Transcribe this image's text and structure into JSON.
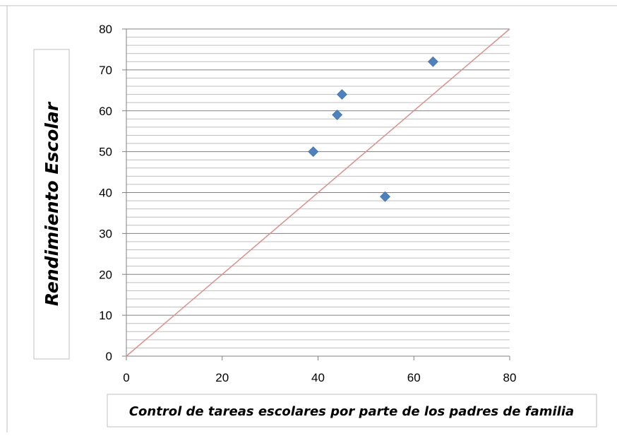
{
  "chart_data": {
    "type": "scatter",
    "title": "",
    "xlabel": "Control de tareas escolares por parte de los padres de familia",
    "ylabel": "Rendimiento Escolar",
    "xlim": [
      0,
      80
    ],
    "ylim": [
      0,
      80
    ],
    "x_ticks": [
      "0",
      "20",
      "40",
      "60",
      "80"
    ],
    "y_ticks": [
      "0",
      "10",
      "20",
      "30",
      "40",
      "50",
      "60",
      "70",
      "80"
    ],
    "grid": "horizontal major and minor",
    "legend": "none",
    "series": [
      {
        "points": [
          {
            "x": 39,
            "y": 50
          },
          {
            "x": 44,
            "y": 59
          },
          {
            "x": 45,
            "y": 64
          },
          {
            "x": 54,
            "y": 39
          },
          {
            "x": 64,
            "y": 72
          }
        ]
      }
    ],
    "reference_line": {
      "from": [
        0,
        0
      ],
      "to": [
        80,
        80
      ]
    },
    "colors": {
      "marker": "#4f81bd",
      "reference_line": "#d9908c",
      "grid_major": "#808080",
      "grid_minor": "#bfbfbf",
      "axis": "#808080"
    }
  }
}
